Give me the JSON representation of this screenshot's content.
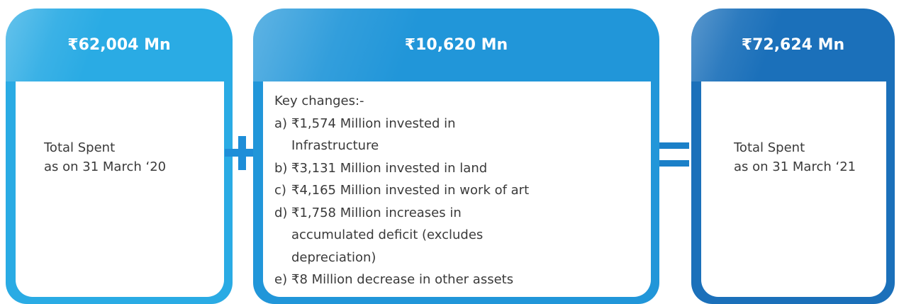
{
  "cards": [
    {
      "amount": "₹62,004 Mn",
      "lines": [
        "Total Spent",
        "as on 31 March ‘20"
      ]
    },
    {
      "amount": "₹10,620 Mn",
      "heading": "Key changes:-",
      "items": [
        {
          "marker": "a)",
          "lines": [
            "₹1,574 Million invested in",
            "Infrastructure"
          ]
        },
        {
          "marker": "b)",
          "lines": [
            "₹3,131 Million invested in land"
          ]
        },
        {
          "marker": "c)",
          "lines": [
            "₹4,165 Million invested in work of art"
          ]
        },
        {
          "marker": "d)",
          "lines": [
            "₹1,758 Million increases in",
            "accumulated deficit (excludes",
            "depreciation)"
          ]
        },
        {
          "marker": "e)",
          "lines": [
            "₹8 Million decrease in other assets"
          ]
        }
      ]
    },
    {
      "amount": "₹72,624 Mn",
      "lines": [
        "Total Spent",
        "as on 31 March ‘21"
      ]
    }
  ]
}
